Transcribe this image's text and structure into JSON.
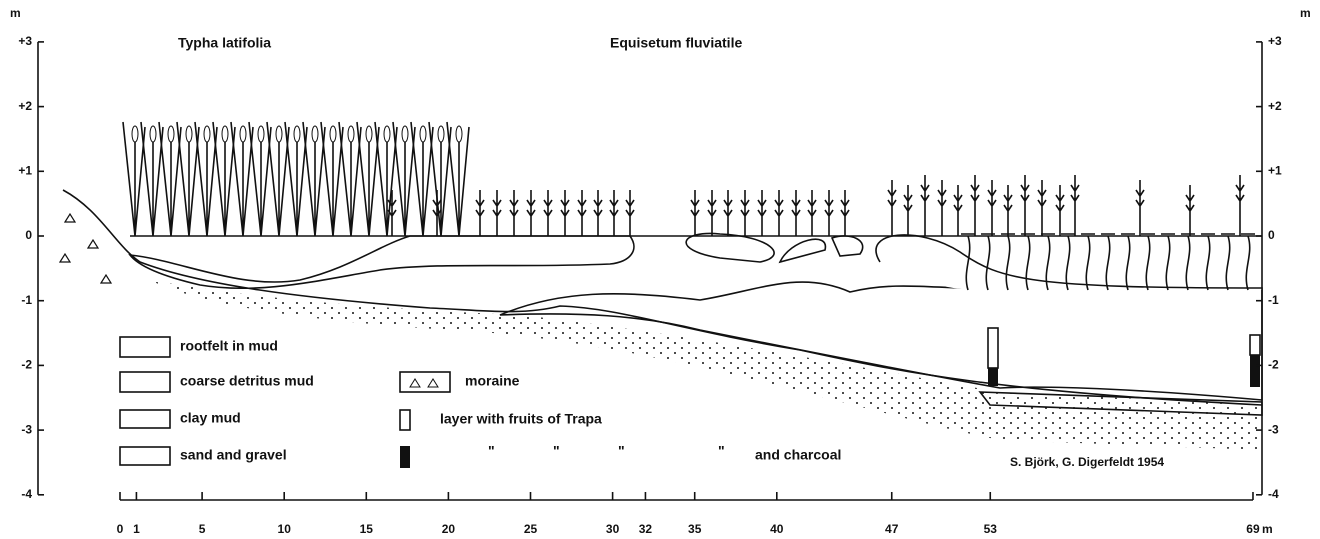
{
  "header": {
    "left_title": "Typha latifolia",
    "right_title": "Equisetum fluviatile"
  },
  "y_axis": {
    "unit": "m",
    "ticks": [
      {
        "value": 3,
        "label": "+3"
      },
      {
        "value": 2,
        "label": "+2"
      },
      {
        "value": 1,
        "label": "+1"
      },
      0,
      -1,
      -2,
      -3,
      -4
    ]
  },
  "x_axis": {
    "unit": "m",
    "ticks": [
      0,
      1,
      5,
      10,
      15,
      20,
      25,
      30,
      32,
      35,
      40,
      47,
      53,
      69
    ]
  },
  "legend": [
    {
      "label": "rootfelt in mud"
    },
    {
      "label": "coarse detritus mud"
    },
    {
      "label": "clay mud"
    },
    {
      "label": "sand and gravel"
    },
    {
      "label": "moraine"
    },
    {
      "label": "layer with fruits of Trapa"
    },
    {
      "label": "and charcoal"
    }
  ],
  "ditto_marks": [
    "\"",
    "\"",
    "\"",
    "\""
  ],
  "credit": "S. Björk, G. Digerfeldt 1954"
}
